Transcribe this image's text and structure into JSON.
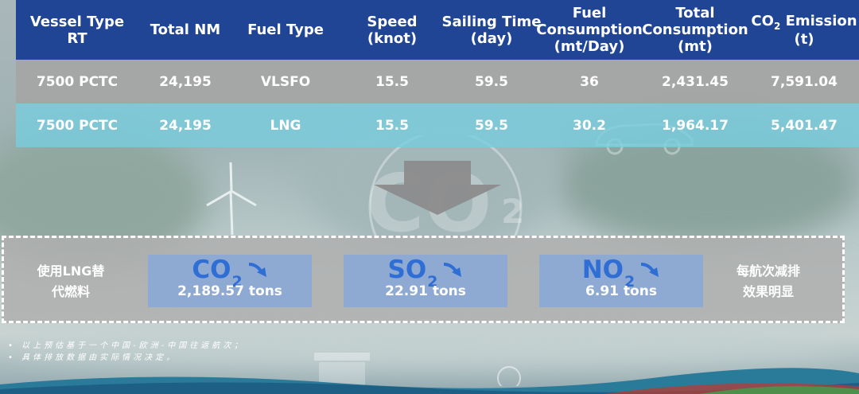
{
  "table": {
    "headers": [
      {
        "line1": "Vessel Type",
        "line2": "RT"
      },
      {
        "line1": "Total NM",
        "line2": ""
      },
      {
        "line1": "Fuel Type",
        "line2": ""
      },
      {
        "line1": "Speed",
        "line2": "(knot)"
      },
      {
        "line1": "Sailing Time",
        "line2": "(day)"
      },
      {
        "line1": "Fuel",
        "line2": "Consumption",
        "line3": "(mt/Day)"
      },
      {
        "line1": "Total",
        "line2": "Consumption",
        "line3": "(mt)"
      },
      {
        "pre": "CO",
        "sub": "2",
        "post": " Emission",
        "line2": "(t)"
      }
    ],
    "rows": [
      [
        "7500 PCTC",
        "24,195",
        "VLSFO",
        "15.5",
        "59.5",
        "36",
        "2,431.45",
        "7,591.04"
      ],
      [
        "7500 PCTC",
        "24,195",
        "LNG",
        "15.5",
        "59.5",
        "30.2",
        "1,964.17",
        "5,401.47"
      ]
    ]
  },
  "panel": {
    "left_line1": "使用LNG替",
    "left_line2": "代燃料",
    "right_line1": "每航次减排",
    "right_line2": "效果明显",
    "gases": [
      {
        "formula": "CO",
        "sub": "2",
        "value": "2,189.57 tons"
      },
      {
        "formula": "SO",
        "sub": "2",
        "value": "22.91 tons"
      },
      {
        "formula": "NO",
        "sub": "2",
        "value": "6.91 tons"
      }
    ]
  },
  "notes": [
    "• 以上预估基于一个中国-欧洲-中国往返航次；",
    "• 具体排放数据由实际情况决定。"
  ],
  "colors": {
    "header_bg": "#1f4594",
    "row1_bg": "#a5a5a5",
    "row2_bg": "#78cdde",
    "gas_box_bg": "#8eaad3",
    "gas_text": "#2f6ed4"
  }
}
